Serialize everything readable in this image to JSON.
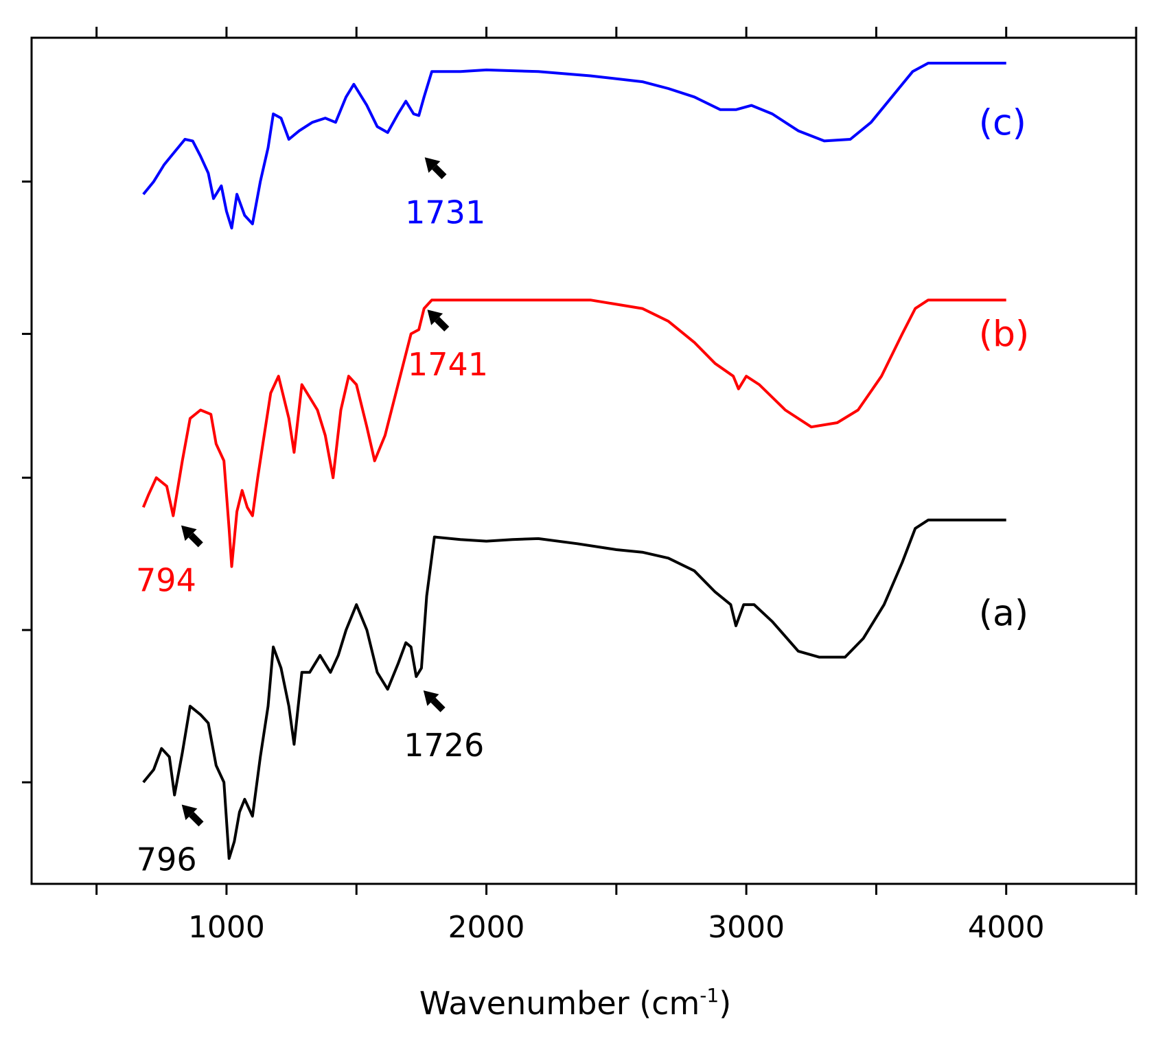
{
  "chart_data": {
    "type": "line",
    "title": "",
    "xlabel": "Wavenumber (cm",
    "xlabel_sup": "-1",
    "xlabel_close": ")",
    "ylabel": "",
    "xlim": [
      250,
      4500
    ],
    "ylim": [
      0,
      1
    ],
    "x_ticks": [
      1000,
      2000,
      3000,
      4000
    ],
    "x_tick_labels": [
      "1000",
      "2000",
      "3000",
      "4000"
    ],
    "x_minor_ticks": [
      500,
      1500,
      2500,
      3500,
      4500
    ],
    "y_ticks": [
      0.12,
      0.3,
      0.48,
      0.65,
      0.83
    ],
    "grid": false,
    "series": [
      {
        "name": "(a)",
        "color": "#000000",
        "peak_labels": [
          {
            "label": "796",
            "x": 796,
            "y": 0.105
          },
          {
            "label": "1726",
            "x": 1726,
            "y": 0.24
          }
        ],
        "points": [
          [
            680,
            0.12
          ],
          [
            720,
            0.135
          ],
          [
            750,
            0.16
          ],
          [
            780,
            0.15
          ],
          [
            800,
            0.105
          ],
          [
            830,
            0.155
          ],
          [
            860,
            0.21
          ],
          [
            900,
            0.2
          ],
          [
            930,
            0.19
          ],
          [
            960,
            0.14
          ],
          [
            990,
            0.12
          ],
          [
            1010,
            0.03
          ],
          [
            1030,
            0.05
          ],
          [
            1050,
            0.085
          ],
          [
            1070,
            0.1
          ],
          [
            1100,
            0.08
          ],
          [
            1130,
            0.15
          ],
          [
            1160,
            0.21
          ],
          [
            1180,
            0.28
          ],
          [
            1210,
            0.255
          ],
          [
            1240,
            0.21
          ],
          [
            1260,
            0.165
          ],
          [
            1290,
            0.25
          ],
          [
            1320,
            0.25
          ],
          [
            1360,
            0.27
          ],
          [
            1380,
            0.26
          ],
          [
            1400,
            0.25
          ],
          [
            1430,
            0.27
          ],
          [
            1460,
            0.3
          ],
          [
            1500,
            0.33
          ],
          [
            1540,
            0.3
          ],
          [
            1580,
            0.25
          ],
          [
            1620,
            0.23
          ],
          [
            1660,
            0.26
          ],
          [
            1690,
            0.285
          ],
          [
            1710,
            0.28
          ],
          [
            1730,
            0.245
          ],
          [
            1750,
            0.255
          ],
          [
            1770,
            0.34
          ],
          [
            1800,
            0.41
          ],
          [
            1900,
            0.407
          ],
          [
            2000,
            0.405
          ],
          [
            2100,
            0.407
          ],
          [
            2200,
            0.408
          ],
          [
            2350,
            0.402
          ],
          [
            2500,
            0.395
          ],
          [
            2600,
            0.392
          ],
          [
            2700,
            0.385
          ],
          [
            2800,
            0.37
          ],
          [
            2880,
            0.345
          ],
          [
            2940,
            0.33
          ],
          [
            2960,
            0.305
          ],
          [
            2990,
            0.33
          ],
          [
            3030,
            0.33
          ],
          [
            3100,
            0.31
          ],
          [
            3200,
            0.275
          ],
          [
            3280,
            0.268
          ],
          [
            3380,
            0.268
          ],
          [
            3450,
            0.29
          ],
          [
            3530,
            0.33
          ],
          [
            3600,
            0.38
          ],
          [
            3650,
            0.42
          ],
          [
            3700,
            0.43
          ],
          [
            4000,
            0.43
          ]
        ]
      },
      {
        "name": "(b)",
        "color": "#ff0000",
        "peak_labels": [
          {
            "label": "794",
            "x": 794,
            "y": 0.435
          },
          {
            "label": "1741",
            "x": 1741,
            "y": 0.69
          }
        ],
        "points": [
          [
            680,
            0.445
          ],
          [
            700,
            0.46
          ],
          [
            730,
            0.48
          ],
          [
            770,
            0.47
          ],
          [
            795,
            0.435
          ],
          [
            830,
            0.5
          ],
          [
            860,
            0.55
          ],
          [
            900,
            0.56
          ],
          [
            940,
            0.555
          ],
          [
            960,
            0.52
          ],
          [
            990,
            0.5
          ],
          [
            1010,
            0.42
          ],
          [
            1020,
            0.375
          ],
          [
            1040,
            0.44
          ],
          [
            1060,
            0.465
          ],
          [
            1080,
            0.445
          ],
          [
            1100,
            0.435
          ],
          [
            1120,
            0.48
          ],
          [
            1140,
            0.52
          ],
          [
            1170,
            0.58
          ],
          [
            1200,
            0.6
          ],
          [
            1240,
            0.55
          ],
          [
            1260,
            0.51
          ],
          [
            1290,
            0.59
          ],
          [
            1320,
            0.575
          ],
          [
            1350,
            0.56
          ],
          [
            1380,
            0.53
          ],
          [
            1410,
            0.48
          ],
          [
            1440,
            0.56
          ],
          [
            1470,
            0.6
          ],
          [
            1500,
            0.59
          ],
          [
            1540,
            0.54
          ],
          [
            1570,
            0.5
          ],
          [
            1610,
            0.53
          ],
          [
            1660,
            0.59
          ],
          [
            1710,
            0.65
          ],
          [
            1740,
            0.655
          ],
          [
            1760,
            0.68
          ],
          [
            1790,
            0.69
          ],
          [
            2000,
            0.69
          ],
          [
            2200,
            0.69
          ],
          [
            2400,
            0.69
          ],
          [
            2500,
            0.685
          ],
          [
            2600,
            0.68
          ],
          [
            2700,
            0.665
          ],
          [
            2800,
            0.64
          ],
          [
            2880,
            0.615
          ],
          [
            2950,
            0.6
          ],
          [
            2970,
            0.585
          ],
          [
            3000,
            0.6
          ],
          [
            3050,
            0.59
          ],
          [
            3150,
            0.56
          ],
          [
            3250,
            0.54
          ],
          [
            3350,
            0.545
          ],
          [
            3430,
            0.56
          ],
          [
            3520,
            0.6
          ],
          [
            3600,
            0.65
          ],
          [
            3650,
            0.68
          ],
          [
            3700,
            0.69
          ],
          [
            4000,
            0.69
          ]
        ]
      },
      {
        "name": "(c)",
        "color": "#0000ff",
        "peak_labels": [
          {
            "label": "1731",
            "x": 1731,
            "y": 0.87
          }
        ],
        "points": [
          [
            680,
            0.815
          ],
          [
            720,
            0.83
          ],
          [
            760,
            0.85
          ],
          [
            800,
            0.865
          ],
          [
            840,
            0.88
          ],
          [
            870,
            0.878
          ],
          [
            900,
            0.86
          ],
          [
            930,
            0.84
          ],
          [
            950,
            0.81
          ],
          [
            980,
            0.825
          ],
          [
            1000,
            0.795
          ],
          [
            1020,
            0.775
          ],
          [
            1040,
            0.815
          ],
          [
            1070,
            0.79
          ],
          [
            1100,
            0.78
          ],
          [
            1130,
            0.83
          ],
          [
            1160,
            0.87
          ],
          [
            1180,
            0.91
          ],
          [
            1210,
            0.905
          ],
          [
            1240,
            0.88
          ],
          [
            1280,
            0.89
          ],
          [
            1330,
            0.9
          ],
          [
            1380,
            0.905
          ],
          [
            1420,
            0.9
          ],
          [
            1460,
            0.93
          ],
          [
            1490,
            0.945
          ],
          [
            1540,
            0.92
          ],
          [
            1580,
            0.895
          ],
          [
            1620,
            0.888
          ],
          [
            1660,
            0.91
          ],
          [
            1690,
            0.925
          ],
          [
            1720,
            0.91
          ],
          [
            1740,
            0.908
          ],
          [
            1760,
            0.93
          ],
          [
            1790,
            0.96
          ],
          [
            1900,
            0.96
          ],
          [
            2000,
            0.962
          ],
          [
            2200,
            0.96
          ],
          [
            2400,
            0.955
          ],
          [
            2600,
            0.948
          ],
          [
            2700,
            0.94
          ],
          [
            2800,
            0.93
          ],
          [
            2900,
            0.915
          ],
          [
            2960,
            0.915
          ],
          [
            3020,
            0.92
          ],
          [
            3100,
            0.91
          ],
          [
            3200,
            0.89
          ],
          [
            3300,
            0.878
          ],
          [
            3400,
            0.88
          ],
          [
            3480,
            0.9
          ],
          [
            3560,
            0.93
          ],
          [
            3640,
            0.96
          ],
          [
            3700,
            0.97
          ],
          [
            4000,
            0.97
          ]
        ]
      }
    ]
  }
}
